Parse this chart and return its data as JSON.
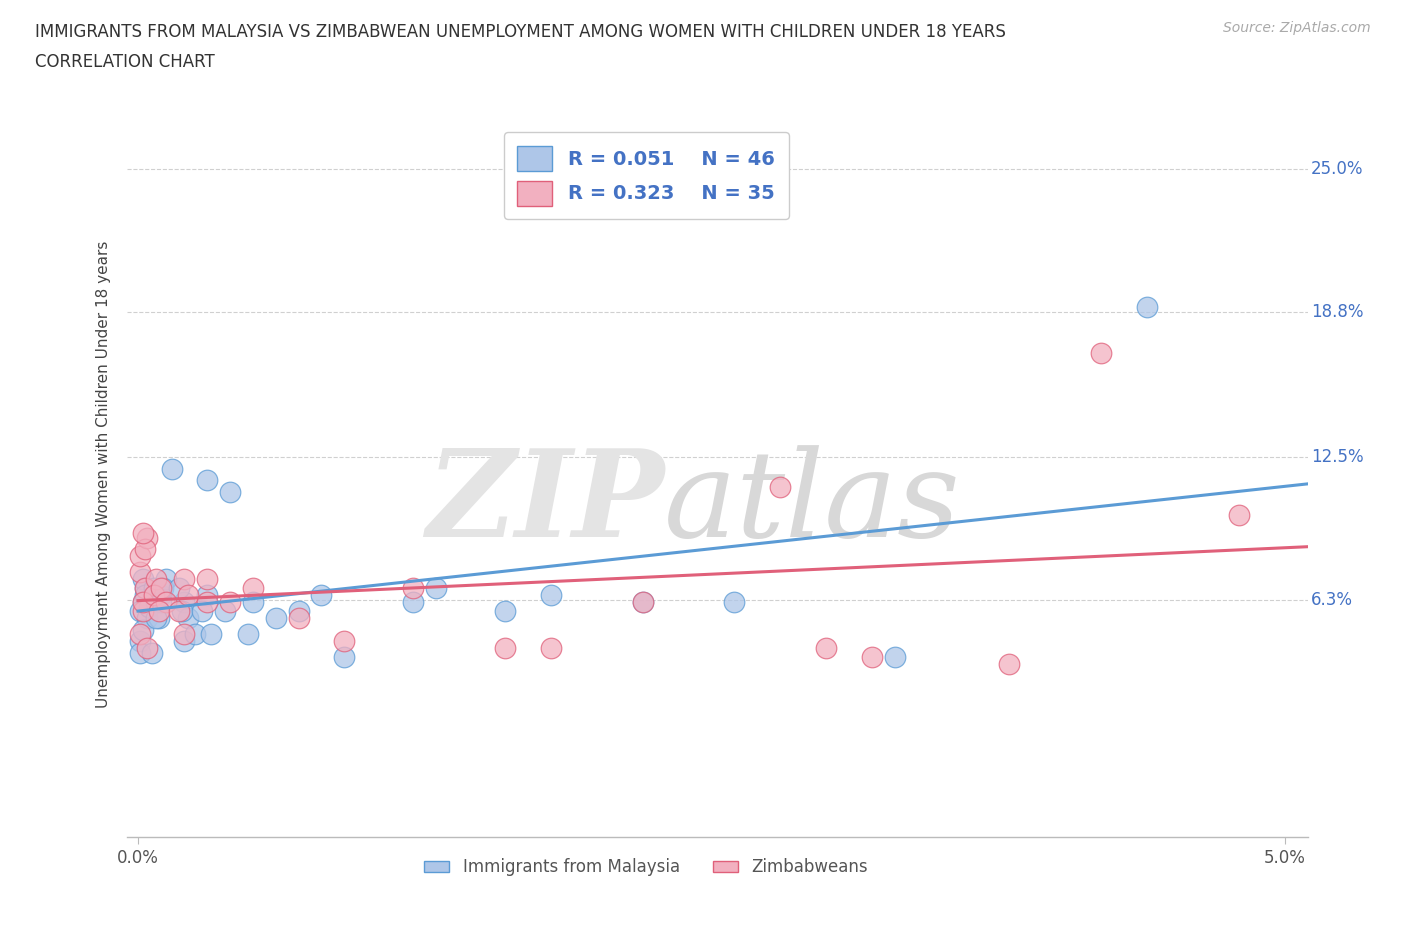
{
  "title_line1": "IMMIGRANTS FROM MALAYSIA VS ZIMBABWEAN UNEMPLOYMENT AMONG WOMEN WITH CHILDREN UNDER 18 YEARS",
  "title_line2": "CORRELATION CHART",
  "source": "Source: ZipAtlas.com",
  "ylabel": "Unemployment Among Women with Children Under 18 years",
  "xlim": [
    -0.0005,
    0.051
  ],
  "ylim": [
    -0.04,
    0.275
  ],
  "ytick_vals": [
    0.063,
    0.125,
    0.188,
    0.25
  ],
  "ytick_labels": [
    "6.3%",
    "12.5%",
    "18.8%",
    "25.0%"
  ],
  "xtick_vals": [
    0.0,
    0.05
  ],
  "xtick_labels": [
    "0.0%",
    "5.0%"
  ],
  "malaysia_fill": "#aec6e8",
  "malaysia_edge": "#5b9bd5",
  "zimbabwe_fill": "#f2b0c0",
  "zimbabwe_edge": "#e0607a",
  "malaysia_trend_color": "#5b9bd5",
  "zimbabwe_trend_color": "#e0607a",
  "label_color_blue": "#4472c4",
  "legend_R1": "R = 0.051",
  "legend_N1": "N = 46",
  "legend_R2": "R = 0.323",
  "legend_N2": "N = 35",
  "malaysia_x": [
    0.0002,
    0.0003,
    0.0001,
    0.0004,
    0.0002,
    0.0001,
    0.0003,
    0.0005,
    0.0001,
    0.0002,
    0.0008,
    0.0007,
    0.0009,
    0.0006,
    0.001,
    0.0012,
    0.0015,
    0.001,
    0.0008,
    0.0011,
    0.002,
    0.0018,
    0.0022,
    0.002,
    0.0025,
    0.0019,
    0.003,
    0.003,
    0.0028,
    0.0032,
    0.004,
    0.0038,
    0.005,
    0.0048,
    0.006,
    0.007,
    0.008,
    0.009,
    0.012,
    0.013,
    0.016,
    0.018,
    0.022,
    0.026,
    0.033,
    0.044
  ],
  "malaysia_y": [
    0.062,
    0.068,
    0.058,
    0.055,
    0.072,
    0.045,
    0.065,
    0.06,
    0.04,
    0.05,
    0.062,
    0.068,
    0.055,
    0.04,
    0.065,
    0.072,
    0.12,
    0.062,
    0.055,
    0.068,
    0.062,
    0.068,
    0.055,
    0.045,
    0.048,
    0.058,
    0.115,
    0.065,
    0.058,
    0.048,
    0.11,
    0.058,
    0.062,
    0.048,
    0.055,
    0.058,
    0.065,
    0.038,
    0.062,
    0.068,
    0.058,
    0.065,
    0.062,
    0.062,
    0.038,
    0.19
  ],
  "zimbabwe_x": [
    0.0001,
    0.0003,
    0.0002,
    0.0001,
    0.0004,
    0.0002,
    0.0001,
    0.0003,
    0.0002,
    0.0004,
    0.0008,
    0.0007,
    0.001,
    0.0012,
    0.0009,
    0.002,
    0.0018,
    0.0022,
    0.002,
    0.003,
    0.003,
    0.004,
    0.005,
    0.007,
    0.009,
    0.012,
    0.016,
    0.018,
    0.022,
    0.028,
    0.03,
    0.032,
    0.038,
    0.042,
    0.048
  ],
  "zimbabwe_y": [
    0.075,
    0.068,
    0.058,
    0.082,
    0.09,
    0.062,
    0.048,
    0.085,
    0.092,
    0.042,
    0.072,
    0.065,
    0.068,
    0.062,
    0.058,
    0.072,
    0.058,
    0.065,
    0.048,
    0.072,
    0.062,
    0.062,
    0.068,
    0.055,
    0.045,
    0.068,
    0.042,
    0.042,
    0.062,
    0.112,
    0.042,
    0.038,
    0.035,
    0.17,
    0.1
  ]
}
